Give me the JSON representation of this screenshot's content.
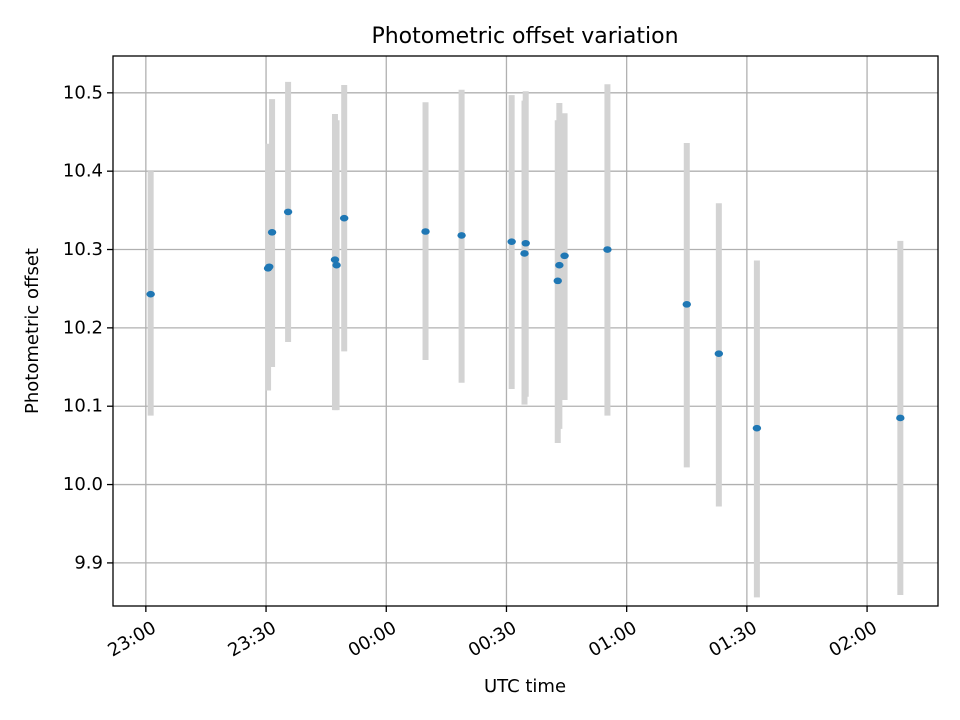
{
  "chart_data": {
    "type": "scatter",
    "title": "Photometric offset variation",
    "xlabel": "UTC time",
    "ylabel": "Photometric offset",
    "x_tick_labels": [
      "23:00",
      "23:30",
      "00:00",
      "00:30",
      "01:00",
      "01:30",
      "02:00"
    ],
    "y_tick_labels": [
      "9.9",
      "10.0",
      "10.1",
      "10.2",
      "10.3",
      "10.4",
      "10.5"
    ],
    "y_ticks": [
      9.9,
      10.0,
      10.1,
      10.2,
      10.3,
      10.4,
      10.5
    ],
    "ylim": [
      9.845,
      10.547
    ],
    "xlim_minutes": [
      -8.2,
      197.7
    ],
    "x_ticks_minutes": [
      0,
      30,
      60,
      90,
      120,
      150,
      180
    ],
    "grid": true,
    "colors": {
      "marker": "#1f77b4",
      "errorbar": "#d3d3d3",
      "grid": "#b0b0b0"
    },
    "series": [
      {
        "x_minutes": [
          1.2,
          30.5,
          30.8,
          31.5,
          35.5,
          47.2,
          47.6,
          49.5,
          69.8,
          78.8,
          91.3,
          94.5,
          94.8,
          102.8,
          103.2,
          104.5,
          115.2,
          135.0,
          143.0,
          152.5,
          188.3
        ],
        "x_labels": [
          "23:01",
          "23:30",
          "23:30",
          "23:31",
          "23:35",
          "23:47",
          "23:47",
          "23:49",
          "00:09",
          "00:18",
          "00:31",
          "00:34",
          "00:34",
          "00:42",
          "00:43",
          "00:44",
          "00:55",
          "01:15",
          "01:23",
          "01:32",
          "02:08"
        ],
        "y": [
          10.243,
          10.276,
          10.278,
          10.322,
          10.348,
          10.287,
          10.28,
          10.34,
          10.323,
          10.318,
          10.31,
          10.295,
          10.308,
          10.26,
          10.28,
          10.292,
          10.3,
          10.23,
          10.167,
          10.072,
          10.085
        ],
        "yerr_low": [
          10.088,
          10.12,
          10.15,
          10.15,
          10.182,
          10.095,
          10.095,
          10.17,
          10.159,
          10.13,
          10.122,
          10.102,
          10.112,
          10.053,
          10.071,
          10.108,
          10.088,
          10.022,
          9.972,
          9.856,
          9.859
        ],
        "yerr_high": [
          10.4,
          10.435,
          10.407,
          10.492,
          10.514,
          10.473,
          10.465,
          10.51,
          10.488,
          10.504,
          10.497,
          10.49,
          10.502,
          10.465,
          10.487,
          10.474,
          10.511,
          10.436,
          10.359,
          10.286,
          10.311
        ]
      }
    ]
  }
}
